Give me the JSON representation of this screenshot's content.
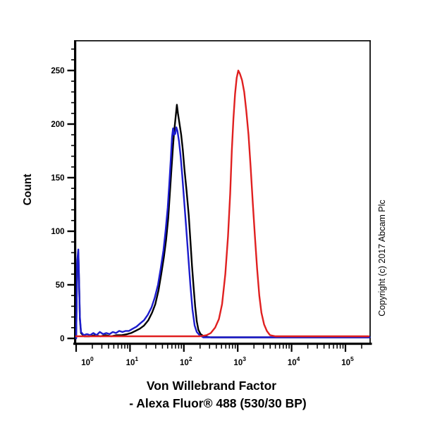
{
  "figure": {
    "copyright": "Copyright (c) 2017 Abcam Plc",
    "background_color": "#ffffff",
    "axis_color": "#000000"
  },
  "chart_data": {
    "type": "line",
    "subtype": "flow-cytometry-histogram",
    "title": "",
    "xlabel_line1": "Von Willebrand Factor",
    "xlabel_line2": "- Alexa Fluor® 488 (530/30 BP)",
    "ylabel": "Count",
    "x_scale": "log10",
    "x_tick_base": "10",
    "x_tick_exponents": [
      0,
      1,
      2,
      3,
      4,
      5
    ],
    "xlim_log10": [
      0,
      5.45
    ],
    "ylim": [
      0,
      278
    ],
    "y_major_ticks": [
      0,
      50,
      100,
      150,
      200,
      250
    ],
    "y_minor_step": 10,
    "y_minor_max": 270,
    "grid": false,
    "legend": "none",
    "series": [
      {
        "name": "black",
        "color": "#000000",
        "peak_count": 218,
        "peak_log10_x": 1.87,
        "points": [
          [
            0.0,
            0
          ],
          [
            0.02,
            70
          ],
          [
            0.04,
            80
          ],
          [
            0.05,
            62
          ],
          [
            0.07,
            18
          ],
          [
            0.09,
            5
          ],
          [
            0.15,
            2
          ],
          [
            0.25,
            2
          ],
          [
            0.35,
            3
          ],
          [
            0.45,
            2
          ],
          [
            0.55,
            3
          ],
          [
            0.65,
            2
          ],
          [
            0.75,
            3
          ],
          [
            0.85,
            3
          ],
          [
            0.95,
            4
          ],
          [
            1.02,
            5
          ],
          [
            1.1,
            7
          ],
          [
            1.18,
            9
          ],
          [
            1.26,
            12
          ],
          [
            1.34,
            17
          ],
          [
            1.41,
            24
          ],
          [
            1.47,
            32
          ],
          [
            1.53,
            45
          ],
          [
            1.58,
            60
          ],
          [
            1.63,
            76
          ],
          [
            1.67,
            92
          ],
          [
            1.71,
            112
          ],
          [
            1.74,
            135
          ],
          [
            1.77,
            158
          ],
          [
            1.8,
            180
          ],
          [
            1.82,
            193
          ],
          [
            1.84,
            203
          ],
          [
            1.87,
            218
          ],
          [
            1.89,
            210
          ],
          [
            1.92,
            200
          ],
          [
            1.95,
            190
          ],
          [
            1.98,
            176
          ],
          [
            2.01,
            158
          ],
          [
            2.05,
            138
          ],
          [
            2.09,
            115
          ],
          [
            2.12,
            92
          ],
          [
            2.15,
            68
          ],
          [
            2.18,
            48
          ],
          [
            2.21,
            30
          ],
          [
            2.24,
            16
          ],
          [
            2.27,
            8
          ],
          [
            2.31,
            4
          ],
          [
            2.37,
            2
          ],
          [
            2.5,
            1
          ],
          [
            3.0,
            1
          ],
          [
            3.5,
            1
          ],
          [
            4.0,
            1
          ],
          [
            4.5,
            1
          ],
          [
            5.0,
            1
          ],
          [
            5.45,
            1
          ]
        ]
      },
      {
        "name": "blue",
        "color": "#1c1ccd",
        "peak_count": 197,
        "peak_log10_x": 1.86,
        "points": [
          [
            0.0,
            0
          ],
          [
            0.02,
            72
          ],
          [
            0.04,
            83
          ],
          [
            0.05,
            65
          ],
          [
            0.07,
            20
          ],
          [
            0.09,
            6
          ],
          [
            0.14,
            3
          ],
          [
            0.2,
            4
          ],
          [
            0.26,
            3
          ],
          [
            0.32,
            5
          ],
          [
            0.38,
            3
          ],
          [
            0.44,
            6
          ],
          [
            0.5,
            4
          ],
          [
            0.56,
            5
          ],
          [
            0.62,
            4
          ],
          [
            0.68,
            6
          ],
          [
            0.74,
            5
          ],
          [
            0.8,
            7
          ],
          [
            0.86,
            6
          ],
          [
            0.92,
            7
          ],
          [
            0.98,
            7
          ],
          [
            1.05,
            9
          ],
          [
            1.12,
            11
          ],
          [
            1.19,
            14
          ],
          [
            1.26,
            17
          ],
          [
            1.33,
            22
          ],
          [
            1.4,
            29
          ],
          [
            1.46,
            38
          ],
          [
            1.52,
            50
          ],
          [
            1.57,
            65
          ],
          [
            1.62,
            82
          ],
          [
            1.66,
            100
          ],
          [
            1.7,
            122
          ],
          [
            1.73,
            145
          ],
          [
            1.76,
            170
          ],
          [
            1.78,
            188
          ],
          [
            1.8,
            196
          ],
          [
            1.82,
            190
          ],
          [
            1.84,
            191
          ],
          [
            1.86,
            197
          ],
          [
            1.88,
            194
          ],
          [
            1.91,
            184
          ],
          [
            1.94,
            170
          ],
          [
            1.97,
            152
          ],
          [
            2.0,
            132
          ],
          [
            2.04,
            105
          ],
          [
            2.08,
            78
          ],
          [
            2.12,
            50
          ],
          [
            2.16,
            27
          ],
          [
            2.2,
            12
          ],
          [
            2.24,
            6
          ],
          [
            2.29,
            3
          ],
          [
            2.36,
            1
          ],
          [
            2.6,
            1
          ],
          [
            3.0,
            1
          ],
          [
            4.0,
            1
          ],
          [
            5.0,
            1
          ],
          [
            5.45,
            1
          ]
        ]
      },
      {
        "name": "red",
        "color": "#e02020",
        "peak_count": 250,
        "peak_log10_x": 3.01,
        "points": [
          [
            0.0,
            2
          ],
          [
            0.5,
            2
          ],
          [
            1.0,
            2
          ],
          [
            1.5,
            2
          ],
          [
            2.0,
            2
          ],
          [
            2.3,
            2
          ],
          [
            2.42,
            3
          ],
          [
            2.5,
            5
          ],
          [
            2.58,
            10
          ],
          [
            2.65,
            18
          ],
          [
            2.71,
            32
          ],
          [
            2.77,
            60
          ],
          [
            2.82,
            95
          ],
          [
            2.86,
            135
          ],
          [
            2.89,
            175
          ],
          [
            2.92,
            205
          ],
          [
            2.95,
            228
          ],
          [
            2.98,
            243
          ],
          [
            3.01,
            250
          ],
          [
            3.04,
            247
          ],
          [
            3.08,
            241
          ],
          [
            3.12,
            230
          ],
          [
            3.16,
            212
          ],
          [
            3.2,
            190
          ],
          [
            3.24,
            160
          ],
          [
            3.28,
            126
          ],
          [
            3.32,
            95
          ],
          [
            3.36,
            65
          ],
          [
            3.4,
            40
          ],
          [
            3.44,
            24
          ],
          [
            3.49,
            13
          ],
          [
            3.54,
            7
          ],
          [
            3.6,
            3
          ],
          [
            3.7,
            2
          ],
          [
            4.0,
            2
          ],
          [
            4.5,
            2
          ],
          [
            5.0,
            2
          ],
          [
            5.43,
            2
          ]
        ]
      }
    ]
  }
}
